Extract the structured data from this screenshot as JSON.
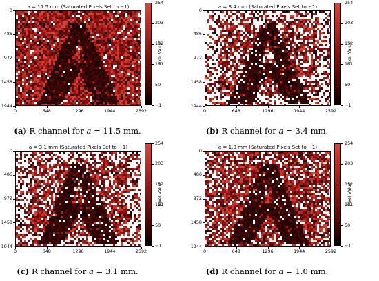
{
  "figures": [
    {
      "id": "a",
      "title": "a = 11.5 mm (Saturated Pixels Set to −1)",
      "caption_label": "(a)",
      "caption_pre": " R channel for ",
      "caption_var": "a",
      "caption_eq": " = 11.5 mm.",
      "saturated_fraction": 0.05
    },
    {
      "id": "b",
      "title": "a = 3.4 mm (Saturated Pixels Set to −1)",
      "caption_label": "(b)",
      "caption_pre": " R channel for ",
      "caption_var": "a",
      "caption_eq": " = 3.4 mm.",
      "saturated_fraction": 0.32
    },
    {
      "id": "c",
      "title": "a = 3.1 mm (Saturated Pixels Set to −1)",
      "caption_label": "(c)",
      "caption_pre": " R channel for ",
      "caption_var": "a",
      "caption_eq": " = 3.1 mm.",
      "saturated_fraction": 0.28
    },
    {
      "id": "d",
      "title": "a = 1.0 mm (Saturated Pixels Set to −1)",
      "caption_label": "(d)",
      "caption_pre": " R channel for ",
      "caption_var": "a",
      "caption_eq": " = 1.0 mm.",
      "saturated_fraction": 0.18
    }
  ],
  "axes": {
    "x_ticks": [
      "0",
      "648",
      "1296",
      "1944",
      "2592"
    ],
    "y_ticks": [
      "0",
      "486",
      "972",
      "1458",
      "1944"
    ]
  },
  "colorbar": {
    "label": "Pixel Value",
    "ticks": [
      "254",
      "203",
      "152",
      "101",
      "50",
      "−1"
    ]
  },
  "colors": {
    "background_red": "#7a0d0d",
    "letter_dark": "#2a0404",
    "saturated": "#ffffff"
  }
}
